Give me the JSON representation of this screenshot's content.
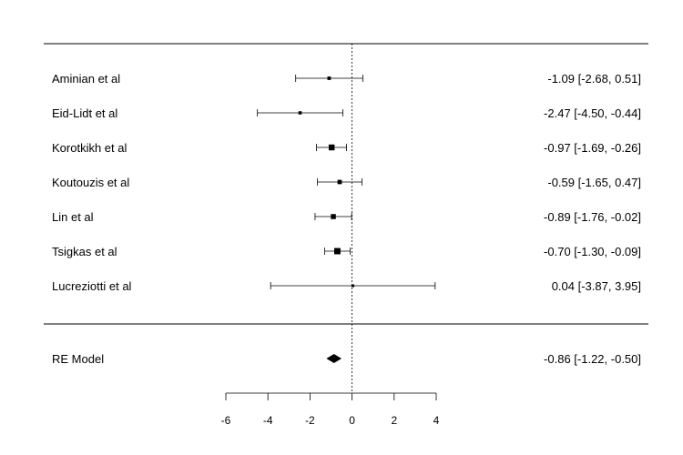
{
  "chart_data": {
    "type": "forest",
    "xlim": [
      -6,
      4
    ],
    "ticks": [
      "-6",
      "-4",
      "-2",
      "0",
      "2",
      "4"
    ],
    "reference_line": 0,
    "studies": [
      {
        "label": "Aminian et al",
        "estimate": -1.09,
        "lower": -2.68,
        "upper": 0.51,
        "text": "-1.09 [-2.68,  0.51]",
        "weight": 0.9
      },
      {
        "label": "Eid-Lidt et al",
        "estimate": -2.47,
        "lower": -4.5,
        "upper": -0.44,
        "text": "-2.47 [-4.50, -0.44]",
        "weight": 0.8
      },
      {
        "label": "Korotkikh et al",
        "estimate": -0.97,
        "lower": -1.69,
        "upper": -0.26,
        "text": "-0.97 [-1.69, -0.26]",
        "weight": 2.6
      },
      {
        "label": "Koutouzis et al",
        "estimate": -0.59,
        "lower": -1.65,
        "upper": 0.47,
        "text": "-0.59 [-1.65,  0.47]",
        "weight": 1.4
      },
      {
        "label": "Lin et al",
        "estimate": -0.89,
        "lower": -1.76,
        "upper": -0.02,
        "text": "-0.89 [-1.76, -0.02]",
        "weight": 1.9
      },
      {
        "label": "Tsigkas et al",
        "estimate": -0.7,
        "lower": -1.3,
        "upper": -0.09,
        "text": "-0.70 [-1.30, -0.09]",
        "weight": 3.0
      },
      {
        "label": "Lucreziotti et al",
        "estimate": 0.04,
        "lower": -3.87,
        "upper": 3.95,
        "text": "0.04 [-3.87,  3.95]",
        "weight": 0.5
      }
    ],
    "summary": {
      "label": "RE Model",
      "estimate": -0.86,
      "lower": -1.22,
      "upper": -0.5,
      "text": "-0.86 [-1.22, -0.50]"
    }
  }
}
